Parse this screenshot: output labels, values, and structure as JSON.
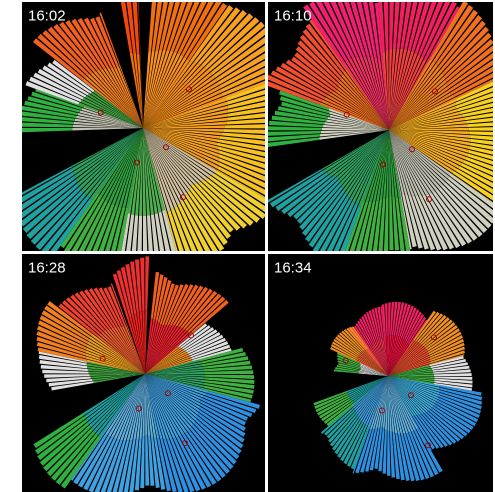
{
  "panels": [
    {
      "label": "16:02"
    },
    {
      "label": "16:10"
    },
    {
      "label": "16:28"
    },
    {
      "label": "16:34"
    }
  ]
}
